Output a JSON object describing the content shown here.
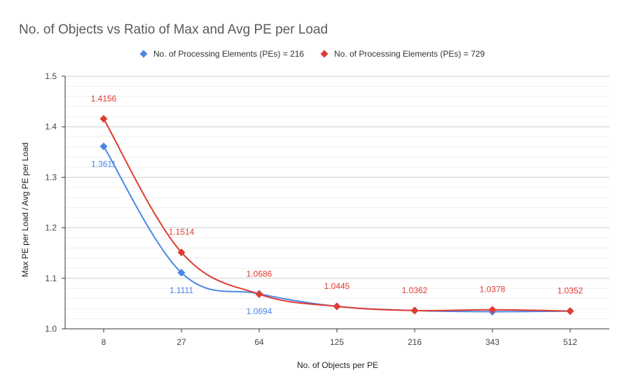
{
  "chart_data": {
    "type": "line",
    "title": "No. of Objects vs Ratio of Max and Avg PE per Load",
    "xlabel": "No. of Objects per PE",
    "ylabel": "Max PE per Load / Avg PE per Load",
    "categories": [
      "8",
      "27",
      "64",
      "125",
      "216",
      "343",
      "512"
    ],
    "ylim": [
      1.0,
      1.5
    ],
    "yticks": [
      "1.0",
      "1.1",
      "1.2",
      "1.3",
      "1.4",
      "1.5"
    ],
    "grid": true,
    "legend_position": "top",
    "series": [
      {
        "name": "No. of Processing Elements (PEs) = 216",
        "color": "#4a86e8",
        "values": [
          1.3611,
          1.1111,
          1.0694,
          1.0445,
          1.0362,
          1.034,
          1.0352
        ],
        "labels": [
          "1.3611",
          "1.1111",
          "1.0694",
          null,
          null,
          null,
          null
        ]
      },
      {
        "name": "No. of Processing Elements (PEs) = 729",
        "color": "#e03c31",
        "values": [
          1.4156,
          1.1514,
          1.0686,
          1.0445,
          1.0362,
          1.0378,
          1.0352
        ],
        "labels": [
          "1.4156",
          "1.1514",
          "1.0686",
          "1.0445",
          "1.0362",
          "1.0378",
          "1.0352"
        ]
      }
    ]
  }
}
